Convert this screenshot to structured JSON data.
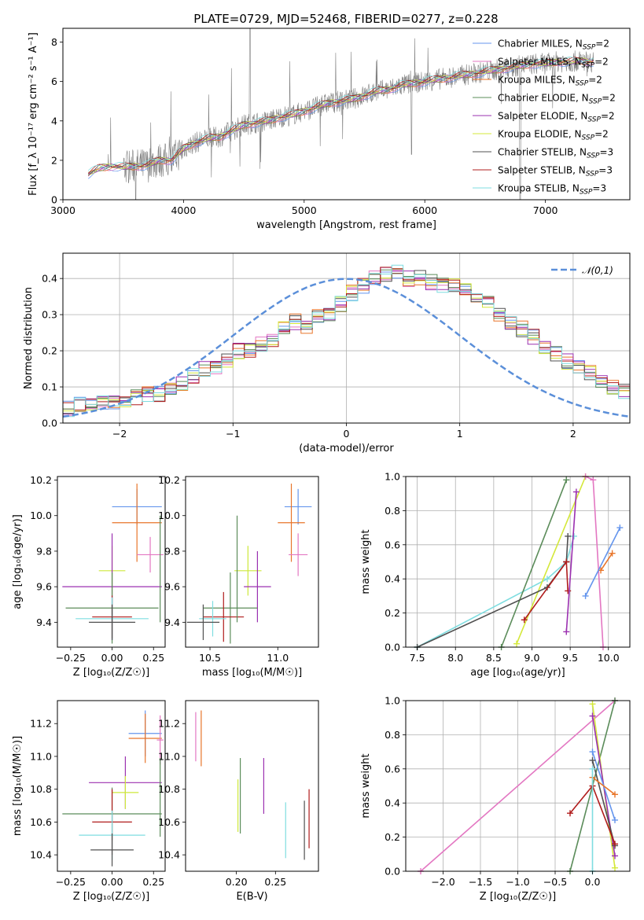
{
  "figure": {
    "title": "PLATE=0729, MJD=52468, FIBERID=0277, z=0.228"
  },
  "chart_data": [
    {
      "id": "spectrum",
      "type": "line",
      "title": "PLATE=0729, MJD=52468, FIBERID=0277, z=0.228",
      "xlabel": "wavelength [Angstrom, rest frame]",
      "ylabel": "Flux [f_λ 10⁻¹⁷ erg cm⁻² s⁻¹ A⁻¹]",
      "xlim": [
        3000,
        7700
      ],
      "ylim": [
        0,
        8.7
      ],
      "xticks": [
        "3000",
        "4000",
        "5000",
        "6000",
        "7000"
      ],
      "yticks": [
        "0",
        "2",
        "4",
        "6",
        "8"
      ],
      "grid": false,
      "legend_position": "top-right",
      "data_series": {
        "name": "data",
        "color": "#808080"
      },
      "continuum": {
        "x": [
          3210,
          3300,
          3400,
          3500,
          3600,
          3700,
          3800,
          3900,
          4000,
          4100,
          4200,
          4300,
          4400,
          4500,
          4600,
          4700,
          4800,
          4900,
          5000,
          5100,
          5200,
          5300,
          5400,
          5500,
          5600,
          5700,
          5800,
          5900,
          6000,
          6100,
          6200,
          6300,
          6400,
          6500,
          6600,
          6700,
          6800,
          6900,
          7000,
          7100,
          7200,
          7300,
          7400
        ],
        "y": [
          1.3,
          1.6,
          1.7,
          1.65,
          1.7,
          1.75,
          2.0,
          2.0,
          2.6,
          2.9,
          3.1,
          3.2,
          3.5,
          3.8,
          3.9,
          4.0,
          4.2,
          4.3,
          4.5,
          4.7,
          4.9,
          5.0,
          5.1,
          5.3,
          5.5,
          5.6,
          5.8,
          5.9,
          6.0,
          6.1,
          6.2,
          6.3,
          6.4,
          6.5,
          6.6,
          6.7,
          6.8,
          6.9,
          6.9,
          7.0,
          7.0,
          7.05,
          7.0
        ]
      },
      "series": [
        {
          "name": "Chabrier MILES, N_SSP=2",
          "label_main": "Chabrier MILES, N",
          "label_sub": "SSP",
          "label_tail": "=2",
          "color": "#6495ed"
        },
        {
          "name": "Salpeter MILES, N_SSP=2",
          "label_main": "Salpeter MILES, N",
          "label_sub": "SSP",
          "label_tail": "=2",
          "color": "#e377c2"
        },
        {
          "name": "Kroupa MILES, N_SSP=2",
          "label_main": "Kroupa MILES, N",
          "label_sub": "SSP",
          "label_tail": "=2",
          "color": "#e8752a"
        },
        {
          "name": "Chabrier ELODIE, N_SSP=2",
          "label_main": "Chabrier ELODIE, N",
          "label_sub": "SSP",
          "label_tail": "=2",
          "color": "#5b8c5a"
        },
        {
          "name": "Salpeter ELODIE, N_SSP=2",
          "label_main": "Salpeter ELODIE, N",
          "label_sub": "SSP",
          "label_tail": "=2",
          "color": "#9b30b0"
        },
        {
          "name": "Kroupa ELODIE, N_SSP=2",
          "label_main": "Kroupa ELODIE, N",
          "label_sub": "SSP",
          "label_tail": "=2",
          "color": "#d4e83a"
        },
        {
          "name": "Chabrier STELIB, N_SSP=3",
          "label_main": "Chabrier STELIB, N",
          "label_sub": "SSP",
          "label_tail": "=3",
          "color": "#505050"
        },
        {
          "name": "Salpeter STELIB, N_SSP=3",
          "label_main": "Salpeter STELIB, N",
          "label_sub": "SSP",
          "label_tail": "=3",
          "color": "#b01c1c"
        },
        {
          "name": "Kroupa STELIB, N_SSP=3",
          "label_main": "Kroupa STELIB, N",
          "label_sub": "SSP",
          "label_tail": "=3",
          "color": "#7fdde0"
        }
      ]
    },
    {
      "id": "residuals",
      "type": "line",
      "xlabel": "(data-model)/error",
      "ylabel": "Normed distribution",
      "xlim": [
        -2.5,
        2.5
      ],
      "ylim": [
        0,
        0.47
      ],
      "xticks": [
        "−2",
        "−1",
        "0",
        "1",
        "2"
      ],
      "yticks": [
        "0.0",
        "0.1",
        "0.2",
        "0.3",
        "0.4"
      ],
      "grid": true,
      "legend": "𝒩(0,1)",
      "legend_position": "top-right",
      "gaussian": {
        "mu": 0,
        "sigma": 1,
        "color": "#5b8fd9"
      },
      "bin_width": 0.1,
      "bin_start": -2.5,
      "hist_shape": [
        0.04,
        0.05,
        0.05,
        0.06,
        0.06,
        0.06,
        0.07,
        0.08,
        0.08,
        0.1,
        0.11,
        0.13,
        0.15,
        0.15,
        0.17,
        0.2,
        0.2,
        0.22,
        0.23,
        0.26,
        0.28,
        0.27,
        0.3,
        0.3,
        0.33,
        0.36,
        0.38,
        0.4,
        0.41,
        0.42,
        0.4,
        0.4,
        0.39,
        0.38,
        0.38,
        0.37,
        0.35,
        0.33,
        0.3,
        0.28,
        0.26,
        0.24,
        0.21,
        0.19,
        0.17,
        0.16,
        0.14,
        0.12,
        0.1,
        0.09,
        0.09,
        0.08,
        0.07,
        0.06,
        0.05,
        0.05,
        0.04,
        0.03,
        0.03,
        0.02
      ]
    },
    {
      "id": "age-vs-Z",
      "type": "scatter",
      "xlabel": "Z [log₁₀(Z/Z☉)]",
      "ylabel": "age  [log₁₀(age/yr)]",
      "xlim": [
        -0.33,
        0.32
      ],
      "ylim": [
        9.26,
        10.22
      ],
      "xticks": [
        "−0.25",
        "0.00",
        "0.25"
      ],
      "yticks": [
        "9.4",
        "9.6",
        "9.8",
        "10.0",
        "10.2"
      ],
      "grid": false,
      "points": [
        {
          "x": 0.15,
          "y": 10.05,
          "xerr": 0.15,
          "yerr": 0.1,
          "color": "#6495ed"
        },
        {
          "x": 0.15,
          "y": 9.96,
          "xerr": 0.15,
          "yerr": 0.22,
          "color": "#e8752a"
        },
        {
          "x": 0.23,
          "y": 9.78,
          "xerr": 0.08,
          "yerr": 0.1,
          "color": "#e377c2"
        },
        {
          "x": 0.0,
          "y": 9.69,
          "xerr": 0.08,
          "yerr": 0.14,
          "color": "#cde83a"
        },
        {
          "x": 0.0,
          "y": 9.6,
          "xerr": 0.3,
          "yerr": 0.3,
          "color": "#9b30b0"
        },
        {
          "x": 0.0,
          "y": 9.48,
          "xerr": 0.28,
          "yerr": 0.2,
          "color": "#5b8c5a"
        },
        {
          "x": 0.0,
          "y": 9.43,
          "xerr": 0.12,
          "yerr": 0.12,
          "color": "#b01c1c"
        },
        {
          "x": 0.0,
          "y": 9.42,
          "xerr": 0.22,
          "yerr": 0.12,
          "color": "#7fdde0"
        },
        {
          "x": 0.0,
          "y": 9.4,
          "xerr": 0.14,
          "yerr": 0.1,
          "color": "#505050"
        },
        {
          "x": 0.29,
          "y": 9.7,
          "xerr": 0.0,
          "yerr": 0.3,
          "color": "#5b8c5a"
        }
      ]
    },
    {
      "id": "age-vs-mass",
      "type": "scatter",
      "xlabel": "mass [log₁₀(M/M☉)]",
      "ylabel": "",
      "xlim": [
        10.32,
        11.3
      ],
      "ylim": [
        9.26,
        10.22
      ],
      "xticks": [
        "10.5",
        "11.0"
      ],
      "yticks": [
        "9.4",
        "9.6",
        "9.8",
        "10.0",
        "10.2"
      ],
      "grid": false,
      "points": [
        {
          "x": 11.15,
          "y": 10.05,
          "xerr": 0.1,
          "yerr": 0.1,
          "color": "#6495ed"
        },
        {
          "x": 11.1,
          "y": 9.96,
          "xerr": 0.1,
          "yerr": 0.22,
          "color": "#e8752a"
        },
        {
          "x": 11.15,
          "y": 9.78,
          "xerr": 0.07,
          "yerr": 0.12,
          "color": "#e377c2"
        },
        {
          "x": 10.78,
          "y": 9.69,
          "xerr": 0.1,
          "yerr": 0.14,
          "color": "#cde83a"
        },
        {
          "x": 10.85,
          "y": 9.6,
          "xerr": 0.1,
          "yerr": 0.2,
          "color": "#9b30b0"
        },
        {
          "x": 10.65,
          "y": 9.48,
          "xerr": 0.2,
          "yerr": 0.2,
          "color": "#5b8c5a"
        },
        {
          "x": 10.6,
          "y": 9.43,
          "xerr": 0.15,
          "yerr": 0.14,
          "color": "#b01c1c"
        },
        {
          "x": 10.52,
          "y": 9.42,
          "xerr": 0.1,
          "yerr": 0.1,
          "color": "#7fdde0"
        },
        {
          "x": 10.45,
          "y": 9.4,
          "xerr": 0.12,
          "yerr": 0.1,
          "color": "#505050"
        },
        {
          "x": 10.7,
          "y": 9.7,
          "xerr": 0.0,
          "yerr": 0.3,
          "color": "#5b8c5a"
        }
      ]
    },
    {
      "id": "weight-vs-age",
      "type": "line",
      "xlabel": "age  [log₁₀(age/yr)]",
      "ylabel": "mass weight",
      "xlim": [
        7.35,
        10.28
      ],
      "ylim": [
        0,
        1
      ],
      "xticks": [
        "7.5",
        "8.0",
        "8.5",
        "9.0",
        "9.5",
        "10.0"
      ],
      "yticks": [
        "0.0",
        "0.2",
        "0.4",
        "0.6",
        "0.8",
        "1.0"
      ],
      "grid": true,
      "series": [
        {
          "color": "#7fdde0",
          "x": [
            7.5,
            9.2,
            9.45,
            9.55
          ],
          "y": [
            0.0,
            0.4,
            0.5,
            0.65
          ]
        },
        {
          "color": "#5b8c5a",
          "x": [
            8.6,
            9.45
          ],
          "y": [
            0.0,
            0.98
          ]
        },
        {
          "color": "#d4e83a",
          "x": [
            8.8,
            9.7
          ],
          "y": [
            0.02,
            1.0
          ]
        },
        {
          "color": "#505050",
          "x": [
            7.5,
            9.2,
            9.45,
            9.47
          ],
          "y": [
            0.0,
            0.35,
            0.5,
            0.65
          ]
        },
        {
          "color": "#b01c1c",
          "x": [
            8.9,
            9.45,
            9.47
          ],
          "y": [
            0.16,
            0.5,
            0.33
          ]
        },
        {
          "color": "#9b30b0",
          "x": [
            9.45,
            9.58
          ],
          "y": [
            0.09,
            0.91
          ]
        },
        {
          "color": "#e377c2",
          "x": [
            9.7,
            9.8,
            9.93
          ],
          "y": [
            1.0,
            0.98,
            0.0
          ]
        },
        {
          "color": "#e8752a",
          "x": [
            9.9,
            10.05
          ],
          "y": [
            0.45,
            0.55
          ]
        },
        {
          "color": "#6495ed",
          "x": [
            9.7,
            10.15
          ],
          "y": [
            0.3,
            0.7
          ]
        }
      ]
    },
    {
      "id": "mass-vs-Z",
      "type": "scatter",
      "xlabel": "Z [log₁₀(Z/Z☉)]",
      "ylabel": "mass [log₁₀(M/M☉)]",
      "xlim": [
        -0.33,
        0.32
      ],
      "ylim": [
        10.3,
        11.34
      ],
      "xticks": [
        "−0.25",
        "0.00",
        "0.25"
      ],
      "yticks": [
        "10.4",
        "10.6",
        "10.8",
        "11.0",
        "11.2"
      ],
      "grid": false,
      "points": [
        {
          "x": 0.2,
          "y": 11.14,
          "xerr": 0.1,
          "yerr": 0.14,
          "color": "#6495ed"
        },
        {
          "x": 0.2,
          "y": 11.11,
          "xerr": 0.1,
          "yerr": 0.15,
          "color": "#e8752a"
        },
        {
          "x": 0.29,
          "y": 11.1,
          "xerr": 0.02,
          "yerr": 0.15,
          "color": "#e377c2"
        },
        {
          "x": 0.08,
          "y": 10.84,
          "xerr": 0.22,
          "yerr": 0.16,
          "color": "#9b30b0"
        },
        {
          "x": 0.08,
          "y": 10.78,
          "xerr": 0.08,
          "yerr": 0.1,
          "color": "#cde83a"
        },
        {
          "x": 0.0,
          "y": 10.65,
          "xerr": 0.3,
          "yerr": 0.16,
          "color": "#5b8c5a"
        },
        {
          "x": 0.0,
          "y": 10.6,
          "xerr": 0.12,
          "yerr": 0.2,
          "color": "#b01c1c"
        },
        {
          "x": 0.0,
          "y": 10.52,
          "xerr": 0.2,
          "yerr": 0.15,
          "color": "#7fdde0"
        },
        {
          "x": 0.0,
          "y": 10.43,
          "xerr": 0.13,
          "yerr": 0.1,
          "color": "#505050"
        },
        {
          "x": 0.29,
          "y": 10.75,
          "xerr": 0.0,
          "yerr": 0.24,
          "color": "#5b8c5a"
        }
      ]
    },
    {
      "id": "mass-vs-EBV",
      "type": "scatter",
      "xlabel": "E(B-V)",
      "ylabel": "",
      "xlim": [
        0.135,
        0.305
      ],
      "ylim": [
        10.3,
        11.34
      ],
      "xticks": [
        "0.20",
        "0.25"
      ],
      "yticks": [
        "10.4",
        "10.6",
        "10.8",
        "11.0",
        "11.2"
      ],
      "grid": false,
      "points": [
        {
          "x": 0.148,
          "y": 11.12,
          "xerr": 0,
          "yerr": 0.15,
          "color": "#e377c2"
        },
        {
          "x": 0.155,
          "y": 11.11,
          "xerr": 0,
          "yerr": 0.17,
          "color": "#e8752a"
        },
        {
          "x": 0.202,
          "y": 10.7,
          "xerr": 0,
          "yerr": 0.16,
          "color": "#cde83a"
        },
        {
          "x": 0.205,
          "y": 10.76,
          "xerr": 0,
          "yerr": 0.23,
          "color": "#5b8c5a"
        },
        {
          "x": 0.235,
          "y": 10.82,
          "xerr": 0,
          "yerr": 0.17,
          "color": "#9b30b0"
        },
        {
          "x": 0.263,
          "y": 10.55,
          "xerr": 0,
          "yerr": 0.17,
          "color": "#7fdde0"
        },
        {
          "x": 0.287,
          "y": 10.55,
          "xerr": 0,
          "yerr": 0.18,
          "color": "#505050"
        },
        {
          "x": 0.293,
          "y": 10.62,
          "xerr": 0,
          "yerr": 0.18,
          "color": "#b01c1c"
        }
      ]
    },
    {
      "id": "weight-vs-Z",
      "type": "line",
      "xlabel": "Z [log₁₀(Z/Z☉)]",
      "ylabel": "mass weight",
      "xlim": [
        -2.5,
        0.5
      ],
      "ylim": [
        0,
        1
      ],
      "xticks": [
        "−2.0",
        "−1.5",
        "−1.0",
        "−0.5",
        "0.0"
      ],
      "yticks": [
        "0.0",
        "0.2",
        "0.4",
        "0.6",
        "0.8",
        "1.0"
      ],
      "grid": true,
      "series": [
        {
          "color": "#e377c2",
          "x": [
            -2.3,
            0.3
          ],
          "y": [
            0.0,
            1.0
          ]
        },
        {
          "color": "#5b8c5a",
          "x": [
            -0.3,
            0.3
          ],
          "y": [
            0.0,
            1.0
          ]
        },
        {
          "color": "#d4e83a",
          "x": [
            0.0,
            0.3
          ],
          "y": [
            0.98,
            0.02
          ]
        },
        {
          "color": "#9b30b0",
          "x": [
            0.0,
            0.3
          ],
          "y": [
            0.91,
            0.09
          ]
        },
        {
          "color": "#6495ed",
          "x": [
            0.0,
            0.3
          ],
          "y": [
            0.7,
            0.3
          ]
        },
        {
          "color": "#505050",
          "x": [
            0.0,
            0.3
          ],
          "y": [
            0.65,
            0.15
          ]
        },
        {
          "color": "#e8752a",
          "x": [
            0.0,
            0.3
          ],
          "y": [
            0.55,
            0.45
          ]
        },
        {
          "color": "#b01c1c",
          "x": [
            -0.3,
            0.0,
            0.3
          ],
          "y": [
            0.34,
            0.5,
            0.16
          ]
        },
        {
          "color": "#7fdde0",
          "x": [
            0.0,
            0.0
          ],
          "y": [
            0.0,
            0.6
          ]
        }
      ]
    }
  ]
}
